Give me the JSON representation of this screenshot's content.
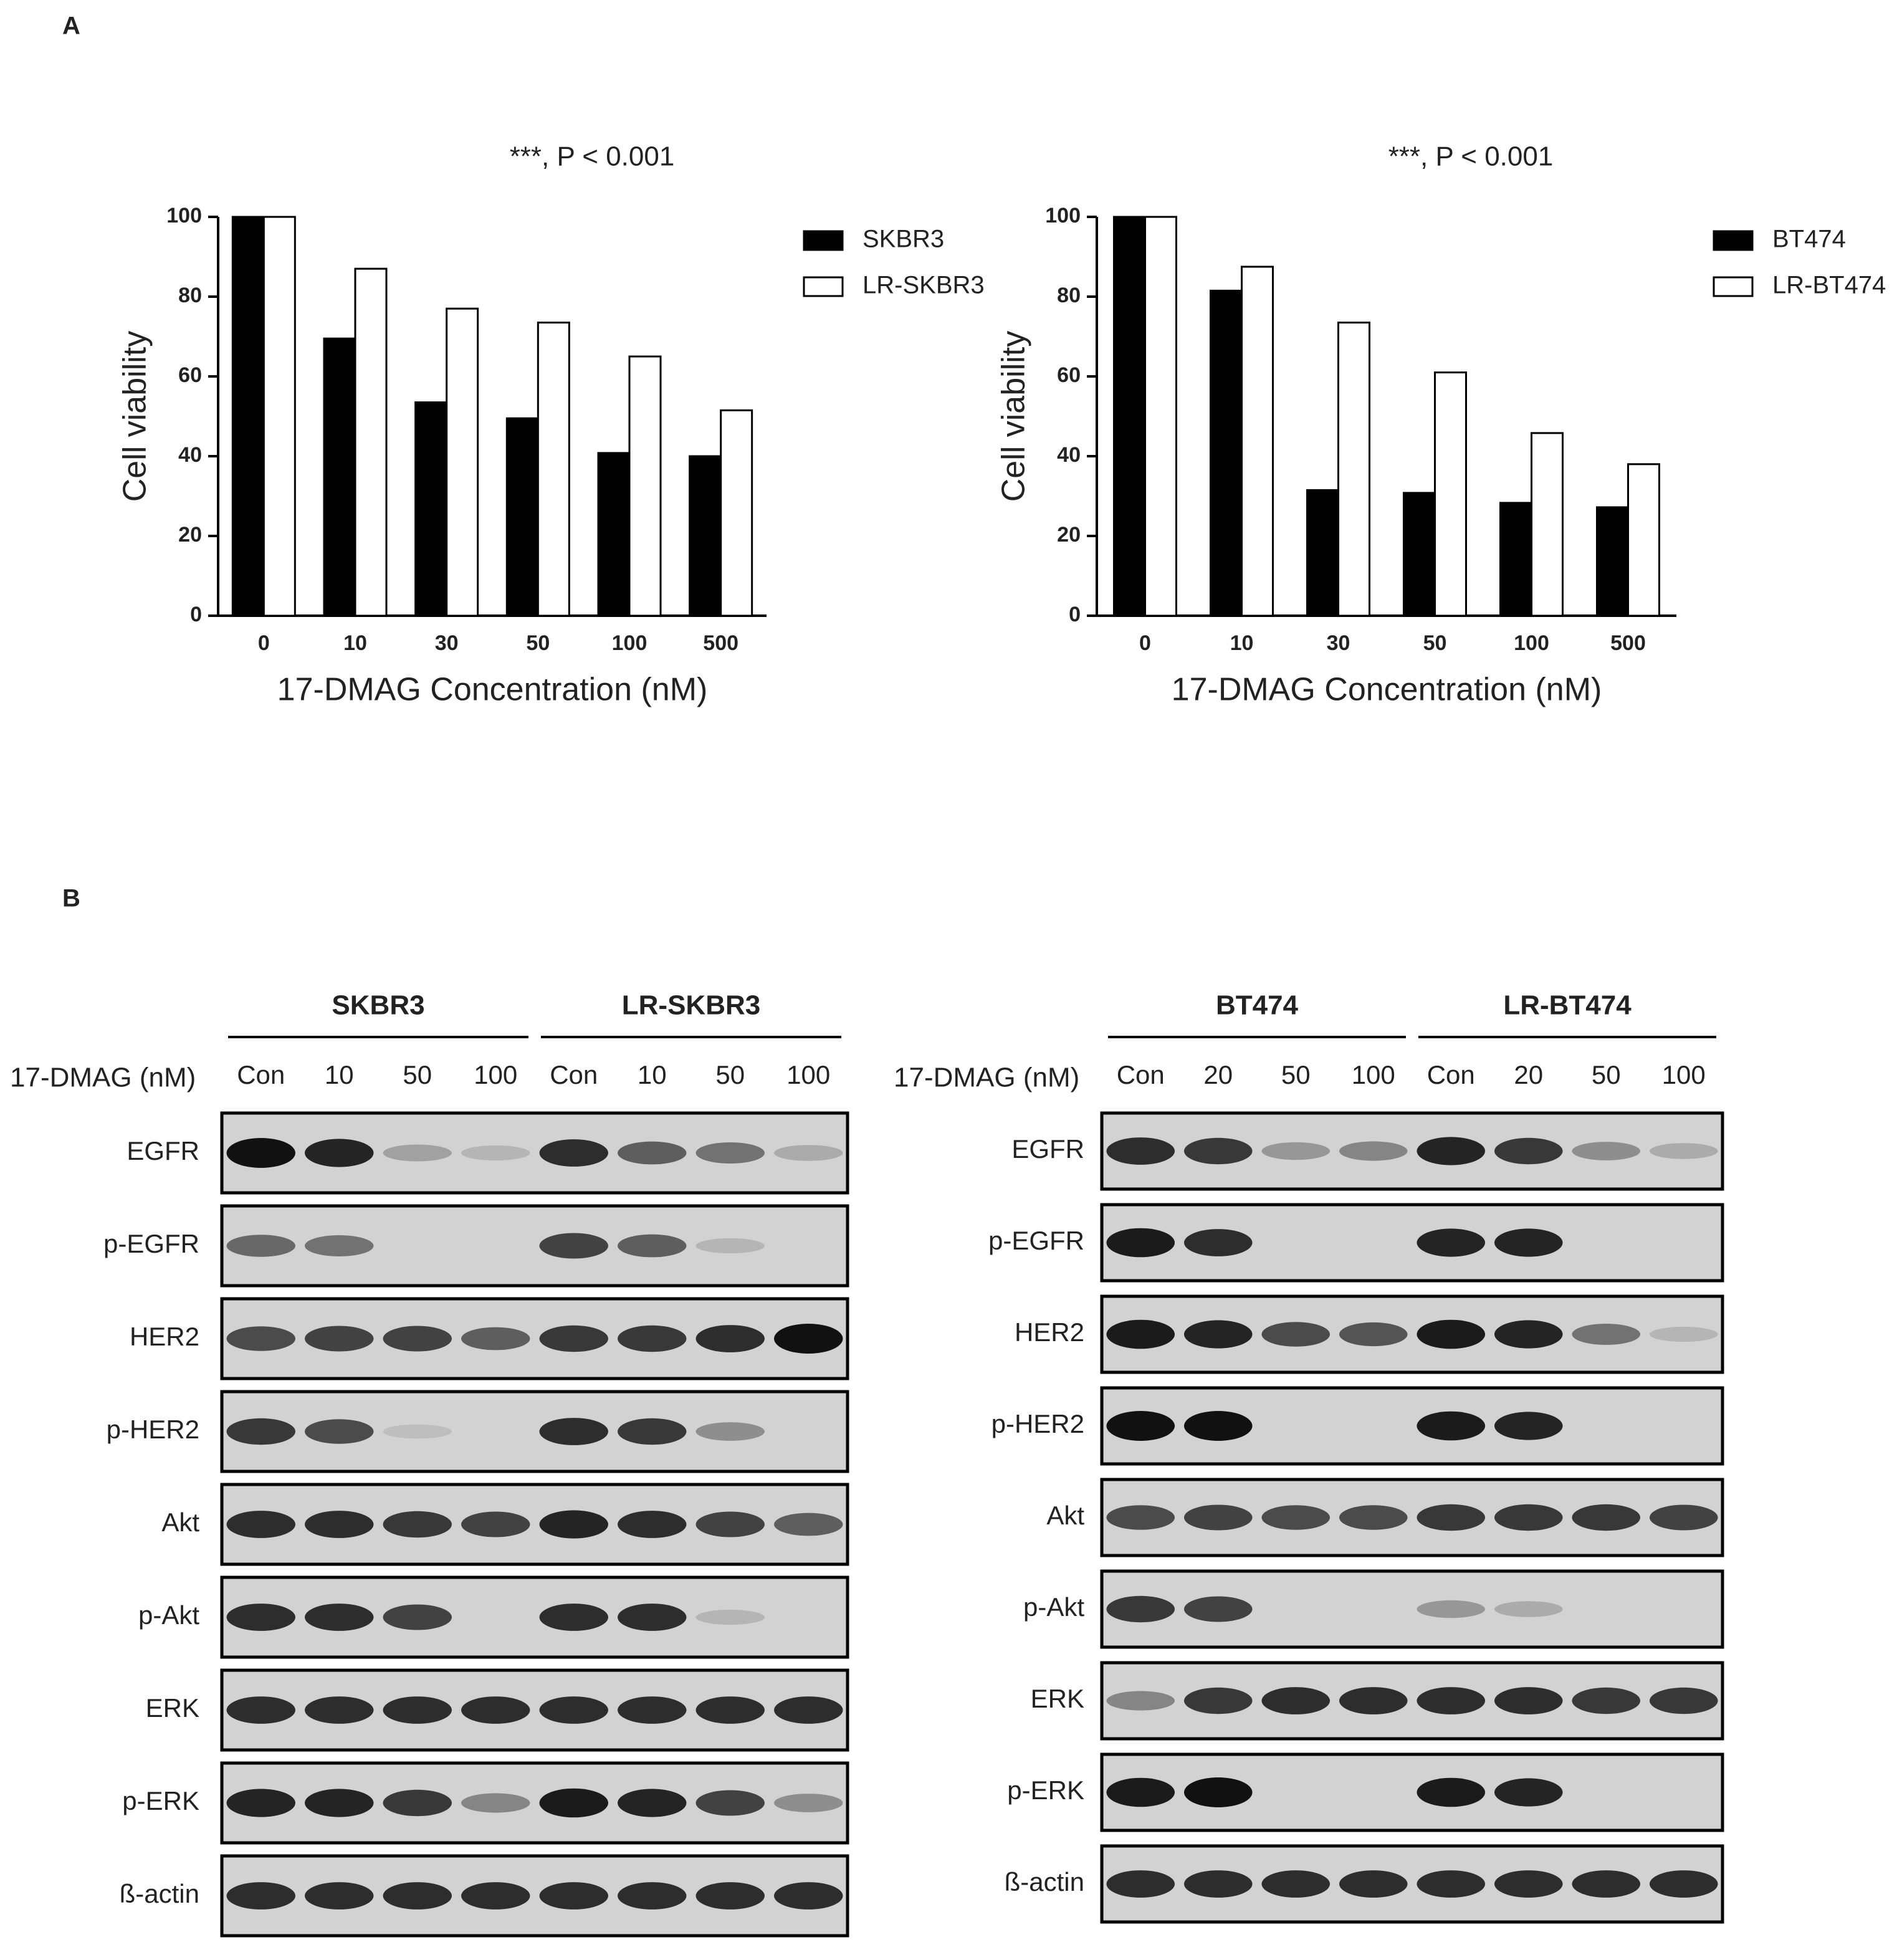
{
  "panel_labels": [
    "A",
    "B"
  ],
  "chart_data": [
    {
      "type": "bar",
      "annotation": "***, P < 0.001",
      "x_label": "17-DMAG Concentration (nM)",
      "y_label": "Cell viability",
      "categories": [
        "0",
        "10",
        "30",
        "50",
        "100",
        "500"
      ],
      "series": [
        {
          "name": "SKBR3",
          "color": "#000000",
          "values": [
            100,
            69.5,
            53.5,
            49.5,
            40.8,
            40
          ]
        },
        {
          "name": "LR-SKBR3",
          "color": "#ffffff",
          "values": [
            100,
            87,
            77,
            73.5,
            65,
            51.5
          ]
        }
      ],
      "ylim": [
        0,
        100
      ],
      "yticks": [
        0,
        20,
        40,
        60,
        80,
        100
      ],
      "grid": false
    },
    {
      "type": "bar",
      "annotation": "***, P < 0.001",
      "x_label": "17-DMAG Concentration (nM)",
      "y_label": "Cell viability",
      "categories": [
        "0",
        "10",
        "30",
        "50",
        "100",
        "500"
      ],
      "series": [
        {
          "name": "BT474",
          "color": "#000000",
          "values": [
            100,
            81.5,
            31.5,
            30.8,
            28.3,
            27.2
          ]
        },
        {
          "name": "LR-BT474",
          "color": "#ffffff",
          "values": [
            100,
            87.5,
            73.5,
            61,
            45.8,
            38
          ]
        }
      ],
      "ylim": [
        0,
        100
      ],
      "yticks": [
        0,
        20,
        40,
        60,
        80,
        100
      ],
      "grid": false
    }
  ],
  "blots": [
    {
      "groups": [
        "SKBR3",
        "LR-SKBR3"
      ],
      "dose_label": "17-DMAG (nM)",
      "lanes": [
        "Con",
        "10",
        "50",
        "100",
        "Con",
        "10",
        "50",
        "100"
      ],
      "rows": [
        "EGFR",
        "p-EGFR",
        "HER2",
        "p-HER2",
        "Akt",
        "p-Akt",
        "ERK",
        "p-ERK",
        "ß-actin"
      ]
    },
    {
      "groups": [
        "BT474",
        "LR-BT474"
      ],
      "dose_label": "17-DMAG (nM)",
      "lanes": [
        "Con",
        "20",
        "50",
        "100",
        "Con",
        "20",
        "50",
        "100"
      ],
      "rows": [
        "EGFR",
        "p-EGFR",
        "HER2",
        "p-HER2",
        "Akt",
        "p-Akt",
        "ERK",
        "p-ERK",
        "ß-actin"
      ]
    }
  ]
}
